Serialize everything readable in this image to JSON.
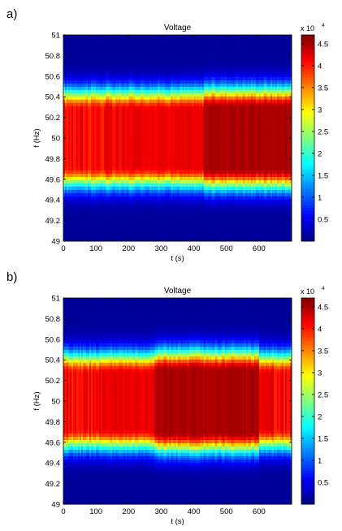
{
  "chart_data": [
    {
      "panel_label": "a)",
      "type": "heatmap",
      "title": "Voltage",
      "xlabel": "t (s)",
      "ylabel": "f (Hz)",
      "xlim": [
        0,
        700
      ],
      "ylim": [
        49,
        51
      ],
      "x_ticks": [
        "0",
        "100",
        "200",
        "300",
        "400",
        "500",
        "600"
      ],
      "y_ticks": [
        "49",
        "49.2",
        "49.4",
        "49.6",
        "49.8",
        "50",
        "50.2",
        "50.4",
        "50.6",
        "50.8",
        "51"
      ],
      "colorbar": {
        "range": [
          0,
          47000
        ],
        "ticks": [
          "0.5",
          "1",
          "1.5",
          "2",
          "2.5",
          "3",
          "3.5",
          "4",
          "4.5"
        ],
        "multiplier": "x 10",
        "exponent": "4"
      },
      "band": {
        "center_hz": 50.0,
        "peak_value": 42000,
        "plateau_halfwidth_hz": 0.28,
        "peak_value_after_430s": 45000,
        "plateau_halfwidth_after_430s_hz": 0.3,
        "striations_before_s": 200
      }
    },
    {
      "panel_label": "b)",
      "type": "heatmap",
      "title": "Voltage",
      "xlabel": "t (s)",
      "ylabel": "f (Hz)",
      "xlim": [
        0,
        700
      ],
      "ylim": [
        49,
        51
      ],
      "x_ticks": [
        "0",
        "100",
        "200",
        "300",
        "400",
        "500",
        "600"
      ],
      "y_ticks": [
        "49",
        "49.2",
        "49.4",
        "49.6",
        "49.8",
        "50",
        "50.2",
        "50.4",
        "50.6",
        "50.8",
        "51"
      ],
      "colorbar": {
        "range": [
          0,
          47000
        ],
        "ticks": [
          "0.5",
          "1",
          "1.5",
          "2",
          "2.5",
          "3",
          "3.5",
          "4",
          "4.5"
        ],
        "multiplier": "x 10",
        "exponent": "4"
      },
      "band": {
        "center_hz": 50.0,
        "peak_value": 42000,
        "plateau_halfwidth_hz": 0.27,
        "peak_value_280_to_600s": 45000,
        "plateau_halfwidth_280_to_600s_hz": 0.3,
        "striations_before_s": 130,
        "striations_after_s": 620
      }
    }
  ]
}
